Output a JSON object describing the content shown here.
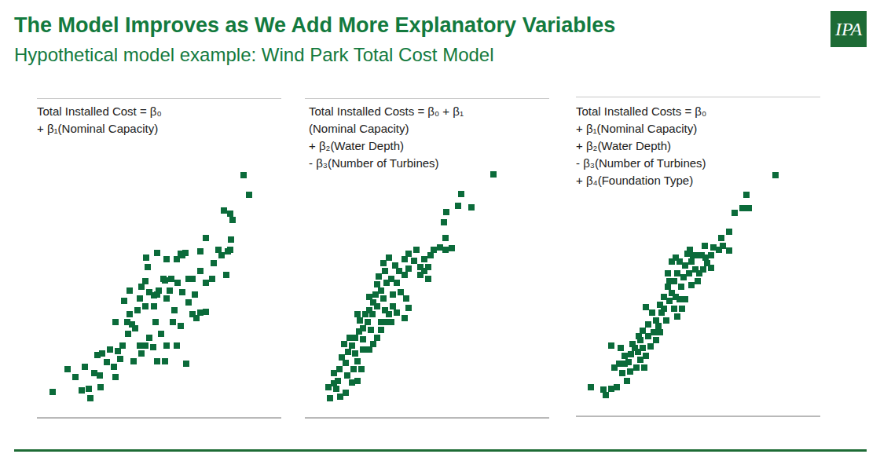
{
  "title": "The Model Improves as We Add More Explanatory Variables",
  "subtitle": "Hypothetical model example: Wind Park Total Cost Model",
  "logo": "IPA",
  "chart_data": [
    {
      "type": "scatter",
      "title": "Total Installed Cost = β₀\n+ β₁(Nominal Capacity)",
      "color": "#0b6b3a",
      "marker": "square",
      "grid": true,
      "tick_labels": false,
      "xlim": [
        0,
        311
      ],
      "ylim": [
        0,
        407
      ],
      "yticks": [
        0,
        136,
        272,
        407
      ],
      "x": [
        20,
        39,
        49,
        57,
        68,
        66,
        81,
        80,
        61,
        77,
        89,
        100,
        98,
        106,
        109,
        93,
        83,
        103,
        116,
        115,
        125,
        128,
        131,
        123,
        133,
        138,
        143,
        148,
        153,
        163,
        165,
        158,
        151,
        149,
        138,
        131,
        118,
        111,
        138,
        133,
        153,
        161,
        165,
        175,
        173,
        183,
        190,
        178,
        193,
        198,
        208,
        215,
        203,
        201,
        193,
        185,
        179,
        171,
        163,
        155,
        149,
        143,
        141,
        139,
        153,
        165,
        178,
        183,
        189,
        198,
        208,
        215,
        223,
        225,
        208,
        215,
        231,
        235,
        243,
        246,
        241,
        247,
        238,
        246,
        249,
        263,
        270,
        185,
        169,
        121,
        100,
        73,
        118
      ],
      "values": [
        33,
        62,
        52,
        35,
        25,
        37,
        39,
        54,
        65,
        80,
        71,
        52,
        65,
        75,
        92,
        87,
        82,
        85,
        107,
        122,
        114,
        137,
        92,
        72,
        82,
        92,
        102,
        90,
        72,
        72,
        92,
        107,
        122,
        142,
        142,
        152,
        132,
        149,
        174,
        167,
        157,
        177,
        152,
        137,
        122,
        117,
        69,
        92,
        147,
        132,
        134,
        135,
        127,
        157,
        177,
        160,
        172,
        177,
        175,
        162,
        156,
        160,
        192,
        204,
        210,
        202,
        202,
        209,
        210,
        177,
        187,
        172,
        177,
        197,
        212,
        229,
        214,
        207,
        212,
        214,
        182,
        227,
        264,
        260,
        252,
        309,
        284,
        207,
        162,
        119,
        122,
        57,
        162
      ]
    },
    {
      "type": "scatter",
      "title": "Total Installed Costs = β₀ + β₁\n(Nominal Capacity)\n+ β₂(Water Depth)\n- β₃(Number of Turbines)",
      "color": "#0b6b3a",
      "marker": "square",
      "grid": true,
      "tick_labels": false,
      "xlim": [
        0,
        311
      ],
      "ylim": [
        0,
        407
      ],
      "yticks": [
        0,
        136,
        272,
        407
      ],
      "x": [
        30,
        32,
        40,
        42,
        37,
        44,
        52,
        47,
        55,
        60,
        50,
        57,
        64,
        69,
        74,
        80,
        77,
        67,
        70,
        82,
        87,
        92,
        90,
        97,
        100,
        102,
        107,
        112,
        104,
        97,
        92,
        87,
        82,
        74,
        67,
        62,
        54,
        60,
        45,
        67,
        72,
        84,
        97,
        110,
        117,
        127,
        129,
        122,
        117,
        110,
        102,
        94,
        100,
        107,
        115,
        127,
        132,
        142,
        139,
        147,
        152,
        157,
        152,
        160,
        164,
        172,
        179,
        187,
        179,
        177,
        180,
        195,
        199,
        212,
        240,
        127,
        112,
        104,
        86,
        74,
        64,
        52,
        37,
        120,
        132,
        147,
        157,
        92,
        82,
        132
      ],
      "values": [
        39,
        25,
        37,
        47,
        57,
        62,
        70,
        77,
        84,
        92,
        94,
        102,
        102,
        110,
        114,
        122,
        132,
        132,
        124,
        137,
        147,
        142,
        157,
        162,
        152,
        137,
        132,
        142,
        122,
        112,
        102,
        94,
        87,
        87,
        72,
        62,
        54,
        45,
        27,
        47,
        62,
        112,
        122,
        122,
        134,
        127,
        152,
        160,
        172,
        177,
        187,
        180,
        197,
        204,
        194,
        202,
        209,
        214,
        200,
        192,
        187,
        177,
        202,
        207,
        214,
        217,
        214,
        216,
        229,
        249,
        262,
        270,
        285,
        268,
        310,
        182,
        157,
        172,
        132,
        100,
        82,
        32,
        44,
        187,
        190,
        182,
        192,
        170,
        154,
        140
      ]
    },
    {
      "type": "scatter",
      "title": "Total Installed Costs = β₀\n+ β₁(Nominal Capacity)\n+ β₂(Water Depth)\n- β₃(Number of Turbines)\n+ β₄(Foundation Type)",
      "color": "#0b6b3a",
      "marker": "square",
      "grid": true,
      "tick_labels": false,
      "xlim": [
        0,
        311
      ],
      "ylim": [
        0,
        407
      ],
      "yticks": [
        0,
        136,
        272,
        407
      ],
      "x": [
        19,
        35,
        38,
        45,
        52,
        45,
        57,
        62,
        67,
        55,
        59,
        69,
        65,
        77,
        79,
        85,
        89,
        95,
        102,
        107,
        102,
        92,
        85,
        82,
        75,
        89,
        97,
        109,
        115,
        119,
        112,
        122,
        125,
        129,
        132,
        125,
        129,
        137,
        139,
        132,
        127,
        122,
        142,
        145,
        147,
        152,
        147,
        139,
        155,
        157,
        162,
        167,
        160,
        172,
        164,
        182,
        187,
        195,
        175,
        185,
        195,
        202,
        212,
        217,
        220,
        254,
        72,
        82,
        92,
        105,
        112,
        117,
        134,
        144,
        149,
        157,
        117,
        107,
        99,
        87,
        49,
        62,
        70,
        80,
        119,
        165,
        172,
        135,
        127
      ],
      "values": [
        37,
        34,
        27,
        35,
        37,
        90,
        87,
        77,
        69,
        67,
        55,
        57,
        45,
        62,
        82,
        87,
        77,
        89,
        97,
        107,
        122,
        117,
        109,
        97,
        87,
        139,
        132,
        132,
        122,
        147,
        152,
        157,
        137,
        127,
        149,
        172,
        182,
        177,
        192,
        197,
        202,
        197,
        207,
        212,
        197,
        187,
        167,
        149,
        172,
        182,
        187,
        195,
        205,
        205,
        217,
        212,
        217,
        211,
        215,
        227,
        235,
        259,
        265,
        282,
        265,
        307,
        92,
        72,
        102,
        115,
        137,
        165,
        165,
        182,
        205,
        205,
        182,
        142,
        107,
        62,
        62,
        67,
        79,
        102,
        172,
        202,
        189,
        137,
        152
      ]
    }
  ]
}
